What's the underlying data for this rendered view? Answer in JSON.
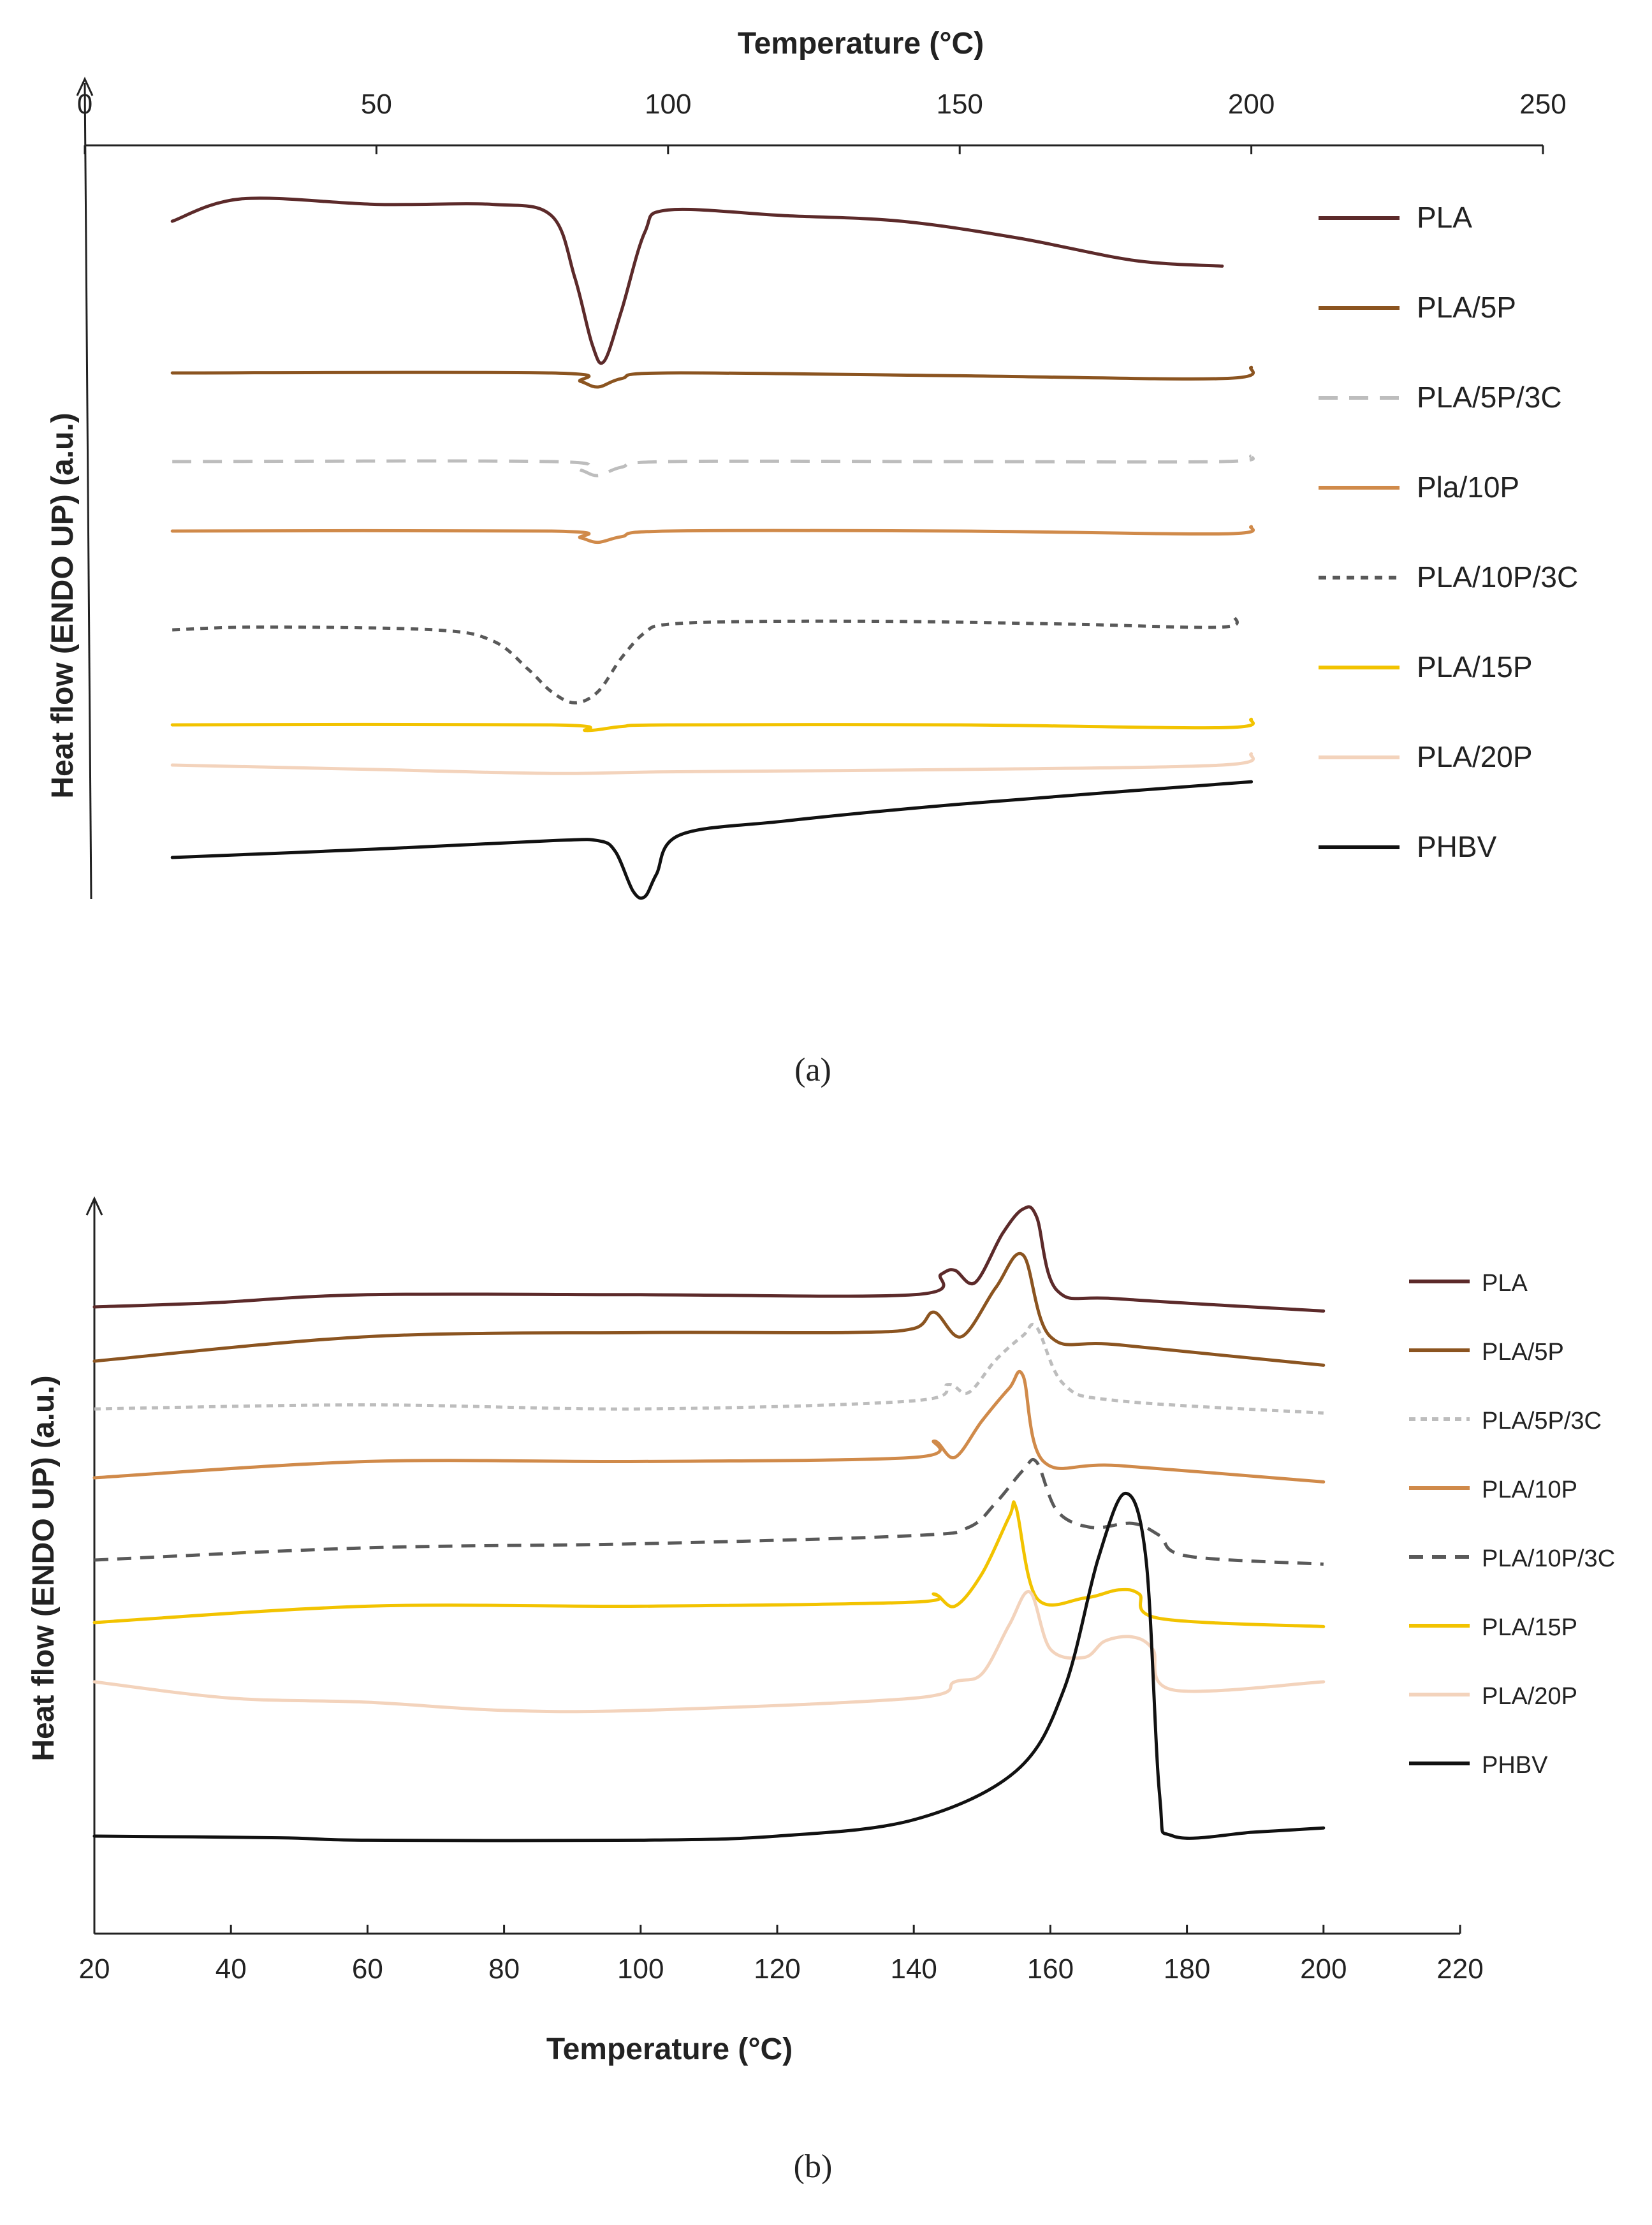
{
  "colors": {
    "PLA": "#5c2a2a",
    "PLA/5P": "#8b5420",
    "PLA/5P/3C": "#bdbdbd",
    "PLA/10P": "#d08a4a",
    "PLA/10P/3C": "#595959",
    "PLA/15P": "#f2c300",
    "PLA/20P": "#f3d3bc",
    "PHBV": "#111111"
  },
  "chart_data": [
    {
      "type": "line",
      "caption": "(a)",
      "xlabel": "Temperature (°C)",
      "ylabel": "Heat flow (ENDO UP) (a.u.)",
      "xlim": [
        0,
        250
      ],
      "xticks": [
        "0",
        "50",
        "100",
        "150",
        "200",
        "250"
      ],
      "x_axis_position": "top",
      "legend_position": "right",
      "grid": false,
      "series": [
        {
          "name": "PLA",
          "style": "solid",
          "x": [
            15,
            27,
            50,
            70,
            80,
            84,
            87,
            89,
            92,
            96,
            100,
            120,
            140,
            160,
            180,
            195
          ],
          "y": [
            0,
            0.4,
            0.3,
            0.3,
            0.1,
            -1.0,
            -2.2,
            -2.5,
            -1.6,
            -0.2,
            0.2,
            0.1,
            0,
            -0.3,
            -0.7,
            -0.8
          ]
        },
        {
          "name": "PLA/5P",
          "style": "solid",
          "x": [
            15,
            80,
            85,
            88,
            92,
            100,
            150,
            195,
            200
          ],
          "y": [
            0,
            0,
            -0.15,
            -0.25,
            -0.1,
            0,
            -0.05,
            -0.1,
            0.1
          ]
        },
        {
          "name": "PLA/5P/3C",
          "style": "dashed-long",
          "x": [
            15,
            80,
            85,
            88,
            92,
            100,
            150,
            195,
            200
          ],
          "y": [
            0,
            0,
            -0.15,
            -0.25,
            -0.1,
            0,
            0,
            0,
            0.1
          ]
        },
        {
          "name": "Pla/10P",
          "style": "solid",
          "x": [
            15,
            80,
            85,
            88,
            92,
            100,
            150,
            195,
            200
          ],
          "y": [
            0,
            0,
            -0.12,
            -0.2,
            -0.1,
            0,
            0,
            -0.05,
            0.08
          ]
        },
        {
          "name": "PLA/10P/3C",
          "style": "dashed-short",
          "x": [
            15,
            30,
            60,
            70,
            76,
            80,
            84,
            88,
            92,
            96,
            100,
            115,
            140,
            170,
            195,
            197
          ],
          "y": [
            0,
            0.05,
            0,
            -0.2,
            -0.7,
            -1.1,
            -1.3,
            -1.1,
            -0.5,
            -0.05,
            0.1,
            0.15,
            0.15,
            0.1,
            0.05,
            0.25
          ]
        },
        {
          "name": "PLA/15P",
          "style": "solid",
          "x": [
            15,
            80,
            86,
            92,
            100,
            150,
            195,
            200
          ],
          "y": [
            0,
            0,
            -0.1,
            -0.03,
            0,
            0,
            -0.05,
            0.1
          ]
        },
        {
          "name": "PLA/20P",
          "style": "solid",
          "x": [
            15,
            50,
            80,
            100,
            150,
            195,
            200
          ],
          "y": [
            0,
            -0.08,
            -0.15,
            -0.12,
            -0.08,
            0,
            0.2
          ]
        },
        {
          "name": "PHBV",
          "style": "solid",
          "x": [
            15,
            50,
            80,
            88,
            91,
            94,
            96,
            98,
            102,
            120,
            150,
            200
          ],
          "y": [
            0,
            0.15,
            0.3,
            0.3,
            0.1,
            -0.6,
            -0.7,
            -0.3,
            0.4,
            0.65,
            0.95,
            1.35
          ]
        }
      ]
    },
    {
      "type": "line",
      "caption": "(b)",
      "xlabel": "Temperature (°C)",
      "ylabel": "Heat flow (ENDO UP) (a.u.)",
      "xlim": [
        20,
        220
      ],
      "xticks": [
        "20",
        "40",
        "60",
        "80",
        "100",
        "120",
        "140",
        "160",
        "180",
        "200",
        "220"
      ],
      "x_axis_position": "bottom",
      "legend_position": "right",
      "grid": false,
      "series": [
        {
          "name": "PLA",
          "style": "solid",
          "x": [
            20,
            37,
            60,
            100,
            140,
            144,
            146,
            149,
            153,
            156,
            158,
            161,
            170,
            200
          ],
          "y": [
            0,
            0.05,
            0.15,
            0.15,
            0.15,
            0.4,
            0.45,
            0.3,
            0.9,
            1.2,
            1.1,
            0.2,
            0.1,
            -0.05
          ]
        },
        {
          "name": "PLA/5P",
          "style": "solid",
          "x": [
            20,
            60,
            100,
            130,
            140,
            143,
            147,
            152,
            156,
            160,
            170,
            200
          ],
          "y": [
            0,
            0.3,
            0.35,
            0.35,
            0.4,
            0.6,
            0.3,
            0.9,
            1.3,
            0.3,
            0.2,
            -0.05
          ]
        },
        {
          "name": "PLA/5P/3C",
          "style": "dashed-short",
          "x": [
            20,
            60,
            100,
            140,
            145,
            148,
            152,
            156,
            158,
            162,
            170,
            200
          ],
          "y": [
            0,
            0.05,
            0,
            0.1,
            0.3,
            0.2,
            0.6,
            0.9,
            1.0,
            0.3,
            0.1,
            -0.05
          ]
        },
        {
          "name": "PLA/10P",
          "style": "solid",
          "x": [
            20,
            60,
            100,
            140,
            143,
            146,
            150,
            154,
            156,
            159,
            170,
            200
          ],
          "y": [
            0,
            0.2,
            0.2,
            0.25,
            0.45,
            0.25,
            0.7,
            1.1,
            1.25,
            0.2,
            0.15,
            -0.05
          ]
        },
        {
          "name": "PLA/10P/3C",
          "style": "dashed-long",
          "x": [
            20,
            60,
            100,
            140,
            148,
            152,
            156,
            158,
            161,
            166,
            172,
            176,
            180,
            200
          ],
          "y": [
            0,
            0.15,
            0.2,
            0.3,
            0.4,
            0.7,
            1.1,
            1.2,
            0.6,
            0.4,
            0.45,
            0.3,
            0.05,
            -0.05
          ]
        },
        {
          "name": "PLA/15P",
          "style": "solid",
          "x": [
            20,
            60,
            100,
            140,
            143,
            146,
            150,
            154,
            155,
            158,
            165,
            170,
            173,
            176,
            200
          ],
          "y": [
            0,
            0.2,
            0.2,
            0.25,
            0.35,
            0.2,
            0.6,
            1.3,
            1.4,
            0.3,
            0.3,
            0.4,
            0.35,
            0.05,
            -0.05
          ]
        },
        {
          "name": "PLA/20P",
          "style": "solid",
          "x": [
            20,
            40,
            60,
            80,
            100,
            140,
            146,
            150,
            154,
            157,
            160,
            165,
            168,
            172,
            175,
            178,
            200
          ],
          "y": [
            0,
            -0.2,
            -0.25,
            -0.35,
            -0.35,
            -0.2,
            0,
            0.1,
            0.7,
            1.1,
            0.4,
            0.3,
            0.5,
            0.55,
            0.4,
            -0.1,
            0
          ]
        },
        {
          "name": "PHBV",
          "style": "solid",
          "x": [
            20,
            47,
            60,
            100,
            120,
            140,
            155,
            162,
            167,
            171,
            174,
            176,
            178,
            190,
            200
          ],
          "y": [
            0,
            -0.02,
            -0.05,
            -0.05,
            0,
            0.2,
            0.8,
            1.8,
            3.4,
            4.2,
            3.4,
            0.5,
            0,
            0.05,
            0.1
          ]
        }
      ]
    }
  ]
}
